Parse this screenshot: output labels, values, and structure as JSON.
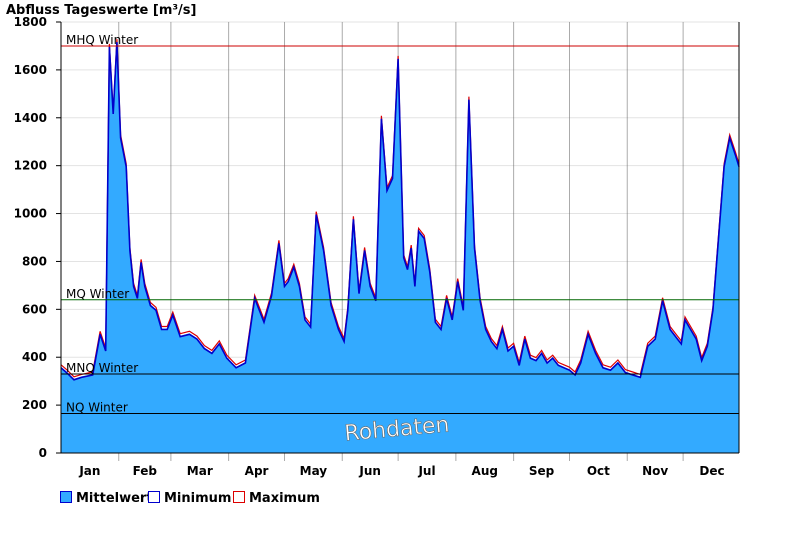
{
  "chart_data": {
    "type": "area",
    "title": "Abfluss Tageswerte [m³/s]",
    "ylim": [
      0,
      1800
    ],
    "y_ticks": [
      0,
      200,
      400,
      600,
      800,
      1000,
      1200,
      1400,
      1600,
      1800
    ],
    "y_tick_labels": [
      "0",
      "200",
      "400",
      "600",
      "800",
      "1000",
      "1200",
      "1400",
      "1600",
      "1800"
    ],
    "months": [
      "Jan",
      "Feb",
      "Mar",
      "Apr",
      "May",
      "Jun",
      "Jul",
      "Aug",
      "Sep",
      "Oct",
      "Nov",
      "Dec"
    ],
    "grid": true,
    "reference_lines": [
      {
        "label": "MHQ Winter",
        "value": 1700,
        "color": "#cc0000"
      },
      {
        "label": "MQ Winter",
        "value": 640,
        "color": "#006600"
      },
      {
        "label": "MNQ Winter",
        "value": 330,
        "color": "#000000"
      },
      {
        "label": "NQ Winter",
        "value": 165,
        "color": "#000000"
      }
    ],
    "series": [
      {
        "name": "Mittelwert",
        "color": "#33aaff"
      },
      {
        "name": "Minimum",
        "color": "#0000cc"
      },
      {
        "name": "Maximum",
        "color": "#dd0000"
      }
    ],
    "x_day": [
      1,
      4,
      8,
      12,
      18,
      22,
      25,
      27,
      29,
      31,
      33,
      36,
      38,
      40,
      42,
      44,
      46,
      49,
      52,
      55,
      58,
      61,
      65,
      70,
      74,
      78,
      82,
      86,
      90,
      95,
      100,
      105,
      110,
      114,
      118,
      121,
      123,
      126,
      129,
      132,
      135,
      138,
      142,
      146,
      150,
      153,
      155,
      158,
      161,
      164,
      167,
      170,
      173,
      176,
      179,
      182,
      185,
      187,
      189,
      191,
      193,
      196,
      199,
      202,
      205,
      208,
      211,
      214,
      217,
      220,
      223,
      226,
      229,
      232,
      235,
      238,
      241,
      244,
      247,
      250,
      253,
      256,
      259,
      262,
      265,
      268,
      271,
      274,
      277,
      280,
      284,
      288,
      292,
      296,
      300,
      304,
      308,
      312,
      316,
      320,
      324,
      328,
      332,
      334,
      336,
      339,
      342,
      345,
      348,
      351,
      354,
      357,
      360,
      363,
      365
    ],
    "values": [
      360,
      340,
      310,
      320,
      330,
      500,
      430,
      1700,
      1420,
      1720,
      1320,
      1200,
      850,
      700,
      650,
      800,
      700,
      620,
      600,
      520,
      520,
      580,
      490,
      500,
      480,
      440,
      420,
      460,
      400,
      360,
      380,
      650,
      550,
      660,
      880,
      700,
      720,
      780,
      700,
      560,
      530,
      1000,
      850,
      620,
      520,
      470,
      600,
      980,
      670,
      850,
      700,
      640,
      1400,
      1100,
      1150,
      1650,
      820,
      770,
      860,
      700,
      930,
      900,
      760,
      550,
      520,
      650,
      560,
      720,
      600,
      1480,
      860,
      640,
      520,
      470,
      440,
      520,
      430,
      450,
      370,
      480,
      400,
      390,
      420,
      380,
      400,
      370,
      360,
      350,
      330,
      380,
      500,
      420,
      360,
      350,
      380,
      340,
      330,
      320,
      450,
      480,
      640,
      520,
      480,
      460,
      560,
      520,
      480,
      390,
      450,
      600,
      900,
      1200,
      1320,
      1250,
      1200
    ]
  },
  "legend": [
    {
      "label": "Mittelwert"
    },
    {
      "label": "Minimum"
    },
    {
      "label": "Maximum"
    }
  ],
  "watermark": "Rohdaten"
}
